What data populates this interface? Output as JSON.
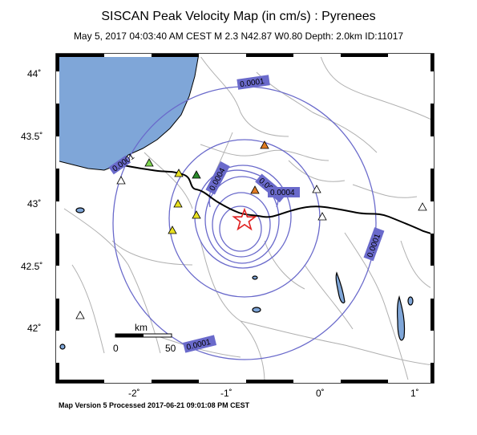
{
  "header": {
    "title": "SISCAN Peak Velocity Map (in cm/s) : Pyrenees",
    "subtitle": "May  5, 2017 04:03:40 AM CEST   M 2.3   N42.87 W0.80   Depth: 2.0km   ID:11017"
  },
  "footer": {
    "text": "Map Version 5 Processed 2017-06-21 09:01:08 PM CEST"
  },
  "axes": {
    "lat_labels": [
      "44˚",
      "43.5˚",
      "43˚",
      "42.5˚",
      "42˚"
    ],
    "lon_labels": [
      "-2˚",
      "-1˚",
      "0˚",
      "1˚"
    ]
  },
  "contour_labels": [
    "0.0001",
    "0.0004",
    "0.0006",
    "0.0004",
    "0.0001",
    "0.0001",
    "0.0001"
  ],
  "scale_bar": {
    "unit": "km",
    "min_label": "0",
    "max_label": "50"
  },
  "colors": {
    "sea": "#7fa6d8",
    "contour": "#6a6acb",
    "label_box": "#6a6acb",
    "border": "#000000",
    "river": "#b0b0b0",
    "epicenter": "#e02020",
    "station_orange": "#e07b22",
    "station_yellow": "#e8e020",
    "station_green": "#2a8a2a",
    "station_lightgreen": "#7fd650",
    "station_white": "#ffffff"
  },
  "stations": [
    {
      "color": "station_orange"
    },
    {
      "color": "station_orange"
    },
    {
      "color": "station_lightgreen"
    },
    {
      "color": "station_yellow"
    },
    {
      "color": "station_green"
    },
    {
      "color": "station_yellow"
    },
    {
      "color": "station_yellow"
    },
    {
      "color": "station_yellow"
    },
    {
      "color": "station_white"
    },
    {
      "color": "station_white"
    },
    {
      "color": "station_white"
    },
    {
      "color": "station_white"
    },
    {
      "color": "station_white"
    }
  ]
}
